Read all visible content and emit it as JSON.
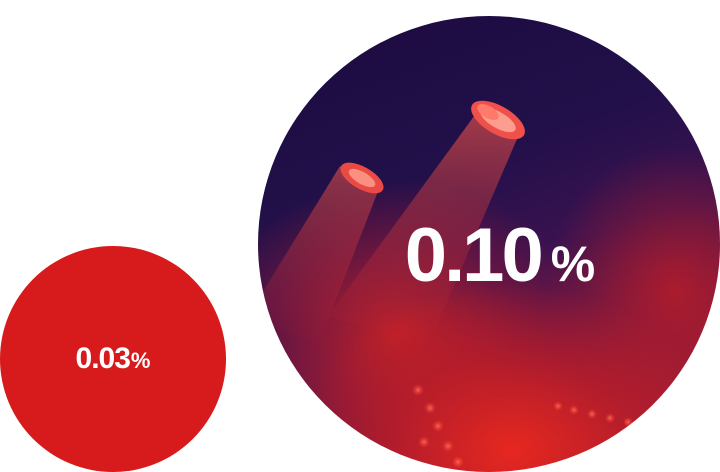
{
  "small_stat": {
    "value": "0.03",
    "unit": "%",
    "color": "#d71b1d"
  },
  "large_stat": {
    "value": "0.10",
    "unit": "%",
    "background": "stage-lights-photo"
  }
}
